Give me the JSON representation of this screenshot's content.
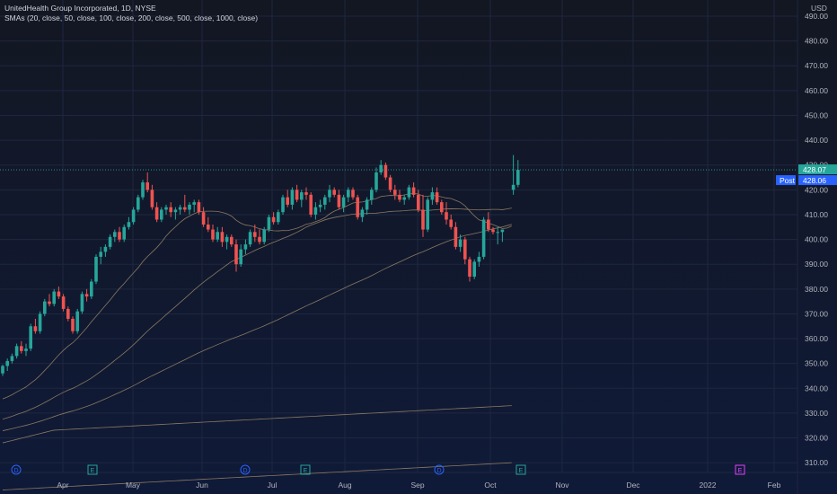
{
  "legend": {
    "title": "UnitedHealth Group Incorporated, 1D, NYSE",
    "indicator": "SMAs (20, close, 50, close, 100, close, 200, close, 500, close, 1000, close)"
  },
  "currency": "USD",
  "price_tags": {
    "last": "428.07",
    "post_label": "Post",
    "post": "428.06"
  },
  "colors": {
    "up": "#26a69a",
    "down": "#ef5350",
    "sma": "#a08a6a",
    "grid": "#1f2740",
    "axis_text": "#b2b5be",
    "tag_last": "#26a69a",
    "tag_post": "#2962ff",
    "event_dividend": "#2962ff",
    "event_earnings_past": "#26a69a",
    "event_earnings_future": "#e040fb"
  },
  "chart_data": {
    "type": "candlestick",
    "y_axis": {
      "ticks": [
        310,
        320,
        330,
        340,
        350,
        360,
        370,
        380,
        390,
        400,
        410,
        420,
        430,
        440,
        450,
        460,
        470,
        480,
        490
      ],
      "format": "0.00"
    },
    "x_axis": {
      "ticks": [
        "Apr",
        "May",
        "Jun",
        "Jul",
        "Aug",
        "Sep",
        "Oct",
        "Nov",
        "Dec",
        "2022",
        "Feb"
      ]
    },
    "ohlc": [
      [
        346,
        349.5,
        345,
        349
      ],
      [
        349,
        352,
        347,
        351
      ],
      [
        351,
        354,
        350,
        353
      ],
      [
        353,
        358,
        352,
        357
      ],
      [
        357,
        359,
        354,
        355
      ],
      [
        355,
        358,
        353,
        356
      ],
      [
        356,
        366,
        355,
        365
      ],
      [
        365,
        368,
        362,
        363
      ],
      [
        363,
        371,
        362,
        370
      ],
      [
        370,
        376,
        369,
        375
      ],
      [
        375,
        378,
        373,
        374
      ],
      [
        374,
        380,
        373,
        379
      ],
      [
        379,
        381,
        376,
        377
      ],
      [
        377,
        378,
        371,
        372
      ],
      [
        372,
        373,
        367,
        368
      ],
      [
        368,
        369,
        362,
        363
      ],
      [
        363,
        372,
        362,
        371
      ],
      [
        371,
        379,
        370,
        378
      ],
      [
        378,
        380,
        375,
        377
      ],
      [
        377,
        384,
        376,
        383
      ],
      [
        383,
        394,
        382,
        393
      ],
      [
        393,
        397,
        390,
        395
      ],
      [
        395,
        398,
        393,
        397
      ],
      [
        397,
        402,
        396,
        401
      ],
      [
        401,
        404,
        399,
        403
      ],
      [
        403,
        405,
        399,
        400
      ],
      [
        400,
        406,
        399,
        405
      ],
      [
        405,
        409,
        404,
        407
      ],
      [
        407,
        413,
        406,
        412
      ],
      [
        412,
        418,
        411,
        417
      ],
      [
        417,
        424,
        416,
        423
      ],
      [
        423,
        427,
        419,
        420
      ],
      [
        420,
        422,
        412,
        413
      ],
      [
        413,
        415,
        407,
        408
      ],
      [
        408,
        413,
        407,
        412
      ],
      [
        412,
        414,
        410,
        413
      ],
      [
        413,
        415,
        409,
        411
      ],
      [
        411,
        413,
        408,
        412
      ],
      [
        412,
        414,
        410,
        413
      ],
      [
        413,
        418,
        411,
        412
      ],
      [
        412,
        415,
        410,
        414
      ],
      [
        414,
        416,
        411,
        415
      ],
      [
        415,
        416,
        410,
        411
      ],
      [
        411,
        413,
        405,
        406
      ],
      [
        406,
        409,
        403,
        404
      ],
      [
        404,
        406,
        399,
        400
      ],
      [
        400,
        405,
        399,
        403
      ],
      [
        403,
        405,
        397,
        399
      ],
      [
        399,
        402,
        396,
        401
      ],
      [
        401,
        402,
        397,
        398
      ],
      [
        398,
        400,
        387,
        390
      ],
      [
        390,
        398,
        389,
        396
      ],
      [
        396,
        400,
        394,
        398
      ],
      [
        398,
        404,
        397,
        403
      ],
      [
        403,
        406,
        399,
        401
      ],
      [
        401,
        404,
        398,
        399
      ],
      [
        399,
        405,
        398,
        404
      ],
      [
        404,
        410,
        403,
        409
      ],
      [
        409,
        411,
        406,
        407
      ],
      [
        407,
        412,
        406,
        411
      ],
      [
        411,
        418,
        410,
        417
      ],
      [
        417,
        420,
        413,
        414
      ],
      [
        414,
        421,
        412,
        420
      ],
      [
        420,
        422,
        415,
        416
      ],
      [
        416,
        420,
        413,
        419
      ],
      [
        419,
        421,
        416,
        418
      ],
      [
        418,
        419,
        409,
        410
      ],
      [
        410,
        415,
        408,
        413
      ],
      [
        413,
        416,
        411,
        414
      ],
      [
        414,
        418,
        412,
        417
      ],
      [
        417,
        422,
        415,
        420
      ],
      [
        420,
        421,
        417,
        418
      ],
      [
        418,
        420,
        412,
        413
      ],
      [
        413,
        418,
        411,
        417
      ],
      [
        417,
        421,
        415,
        420
      ],
      [
        420,
        421,
        416,
        417
      ],
      [
        417,
        418,
        408,
        409
      ],
      [
        409,
        413,
        407,
        412
      ],
      [
        412,
        417,
        410,
        416
      ],
      [
        416,
        421,
        414,
        420
      ],
      [
        420,
        429,
        419,
        427
      ],
      [
        427,
        432,
        426,
        430
      ],
      [
        430,
        431,
        424,
        425
      ],
      [
        425,
        426,
        419,
        420
      ],
      [
        420,
        422,
        416,
        418
      ],
      [
        418,
        420,
        415,
        416
      ],
      [
        416,
        418,
        414,
        417
      ],
      [
        417,
        422,
        416,
        421
      ],
      [
        421,
        423,
        417,
        418
      ],
      [
        418,
        420,
        411,
        412
      ],
      [
        412,
        418,
        401,
        404
      ],
      [
        404,
        417,
        403,
        416
      ],
      [
        416,
        421,
        414,
        419
      ],
      [
        419,
        421,
        414,
        415
      ],
      [
        415,
        416,
        410,
        411
      ],
      [
        411,
        415,
        406,
        408
      ],
      [
        408,
        410,
        404,
        405
      ],
      [
        405,
        407,
        396,
        397
      ],
      [
        397,
        402,
        395,
        400
      ],
      [
        400,
        401,
        390,
        392
      ],
      [
        392,
        393,
        383,
        385
      ],
      [
        385,
        392,
        384,
        391
      ],
      [
        391,
        395,
        389,
        393
      ],
      [
        393,
        409,
        392,
        408
      ],
      [
        408,
        411,
        403,
        404
      ],
      [
        404,
        405,
        402,
        403
      ],
      [
        403,
        405,
        398,
        403
      ],
      [
        403,
        404,
        399,
        404
      ],
      [
        420,
        434,
        418,
        422
      ],
      [
        422,
        432,
        421,
        428.07
      ]
    ],
    "sma_lines_in_view": 5,
    "price_range": [
      305,
      493
    ],
    "events": [
      {
        "type": "D",
        "kind": "dividend",
        "date_label": "Mar"
      },
      {
        "type": "E",
        "kind": "earnings",
        "date_label": "Apr"
      },
      {
        "type": "D",
        "kind": "dividend",
        "date_label": "Jun"
      },
      {
        "type": "E",
        "kind": "earnings",
        "date_label": "Jul"
      },
      {
        "type": "D",
        "kind": "dividend",
        "date_label": "Sep"
      },
      {
        "type": "E",
        "kind": "earnings",
        "date_label": "Oct"
      },
      {
        "type": "E",
        "kind": "earnings-upcoming",
        "date_label": "Jan"
      }
    ]
  }
}
